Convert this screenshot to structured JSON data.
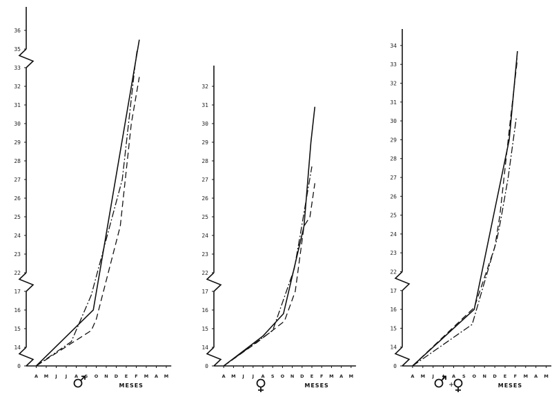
{
  "chart_data": [
    {
      "type": "line",
      "sex_symbol": "male",
      "xlabel": "MESES",
      "categories": [
        "A",
        "M",
        "J",
        "J",
        "A",
        "S",
        "O",
        "N",
        "D",
        "E",
        "F",
        "M",
        "A",
        "M"
      ],
      "ytick_labels": [
        "0",
        "14",
        "15",
        "16",
        "17",
        "22",
        "23",
        "24",
        "25",
        "26",
        "27",
        "28",
        "29",
        "30",
        "31",
        "32",
        "33",
        "35",
        "36"
      ],
      "axis_breaks": [
        [
          0,
          14
        ],
        [
          17,
          22
        ],
        [
          33,
          35
        ]
      ],
      "series": [
        {
          "style": "solid",
          "points": [
            [
              1,
              0
            ],
            [
              6.7,
              16.0
            ],
            [
              11.3,
              35.5
            ]
          ]
        },
        {
          "style": "dash",
          "points": [
            [
              1,
              0
            ],
            [
              6.5,
              14.9
            ],
            [
              7.0,
              15.5
            ],
            [
              9.4,
              24.5
            ],
            [
              10.5,
              30.0
            ],
            [
              11.3,
              32.5
            ]
          ]
        },
        {
          "style": "dashdot",
          "points": [
            [
              1,
              0
            ],
            [
              4.5,
              14.3
            ],
            [
              6.5,
              16.8
            ],
            [
              9.6,
              27.0
            ],
            [
              10.9,
              33.5
            ],
            [
              11.1,
              35.0
            ]
          ]
        }
      ]
    },
    {
      "type": "line",
      "sex_symbol": "female",
      "xlabel": "MESES",
      "categories": [
        "A",
        "M",
        "J",
        "J",
        "A",
        "S",
        "O",
        "N",
        "D",
        "E",
        "F",
        "M",
        "A",
        "M"
      ],
      "ytick_labels": [
        "0",
        "14",
        "15",
        "16",
        "17",
        "22",
        "23",
        "24",
        "25",
        "26",
        "27",
        "28",
        "29",
        "30",
        "31",
        "32"
      ],
      "axis_breaks": [
        [
          0,
          14
        ],
        [
          17,
          22
        ]
      ],
      "series": [
        {
          "style": "solid",
          "points": [
            [
              1,
              0
            ],
            [
              5,
              14.6
            ],
            [
              7.1,
              15.8
            ],
            [
              9.2,
              24.5
            ],
            [
              9.9,
              29.0
            ],
            [
              10.3,
              30.9
            ]
          ]
        },
        {
          "style": "dash",
          "points": [
            [
              1,
              0
            ],
            [
              4.5,
              14.3
            ],
            [
              7.2,
              15.4
            ],
            [
              8.3,
              17.0
            ],
            [
              9.2,
              24.5
            ],
            [
              9.8,
              25.0
            ],
            [
              10.3,
              26.8
            ]
          ]
        },
        {
          "style": "dashdot",
          "points": [
            [
              1,
              0
            ],
            [
              6,
              14.9
            ],
            [
              8.2,
              22.2
            ],
            [
              8.8,
              24.0
            ],
            [
              10.0,
              27.7
            ]
          ]
        }
      ]
    },
    {
      "type": "line",
      "sex_symbol": "male+female",
      "xlabel": "MESES",
      "categories": [
        "A",
        "M",
        "J",
        "J",
        "A",
        "S",
        "O",
        "N",
        "D",
        "E",
        "F",
        "M",
        "A",
        "M"
      ],
      "ytick_labels": [
        "0",
        "14",
        "15",
        "16",
        "17",
        "22",
        "23",
        "24",
        "25",
        "26",
        "27",
        "28",
        "29",
        "30",
        "31",
        "32",
        "33",
        "34"
      ],
      "axis_breaks": [
        [
          0,
          14
        ],
        [
          17,
          22
        ]
      ],
      "series": [
        {
          "style": "solid",
          "points": [
            [
              1,
              0
            ],
            [
              7.0,
              16.0
            ],
            [
              9.0,
              25.3
            ],
            [
              10.4,
              29.0
            ],
            [
              11.2,
              33.7
            ]
          ]
        },
        {
          "style": "dash",
          "points": [
            [
              1,
              0
            ],
            [
              7.0,
              16.1
            ],
            [
              9.0,
              23.3
            ],
            [
              9.5,
              25.0
            ],
            [
              10.5,
              30.0
            ],
            [
              11.2,
              33.3
            ]
          ]
        },
        {
          "style": "dashdot",
          "points": [
            [
              1,
              0
            ],
            [
              6.8,
              15.2
            ],
            [
              9.2,
              23.7
            ],
            [
              9.6,
              24.8
            ],
            [
              10.3,
              27.0
            ],
            [
              11.1,
              30.2
            ]
          ]
        }
      ]
    }
  ],
  "symbols": {
    "male": "♂",
    "female": "♀",
    "plus": "+"
  }
}
